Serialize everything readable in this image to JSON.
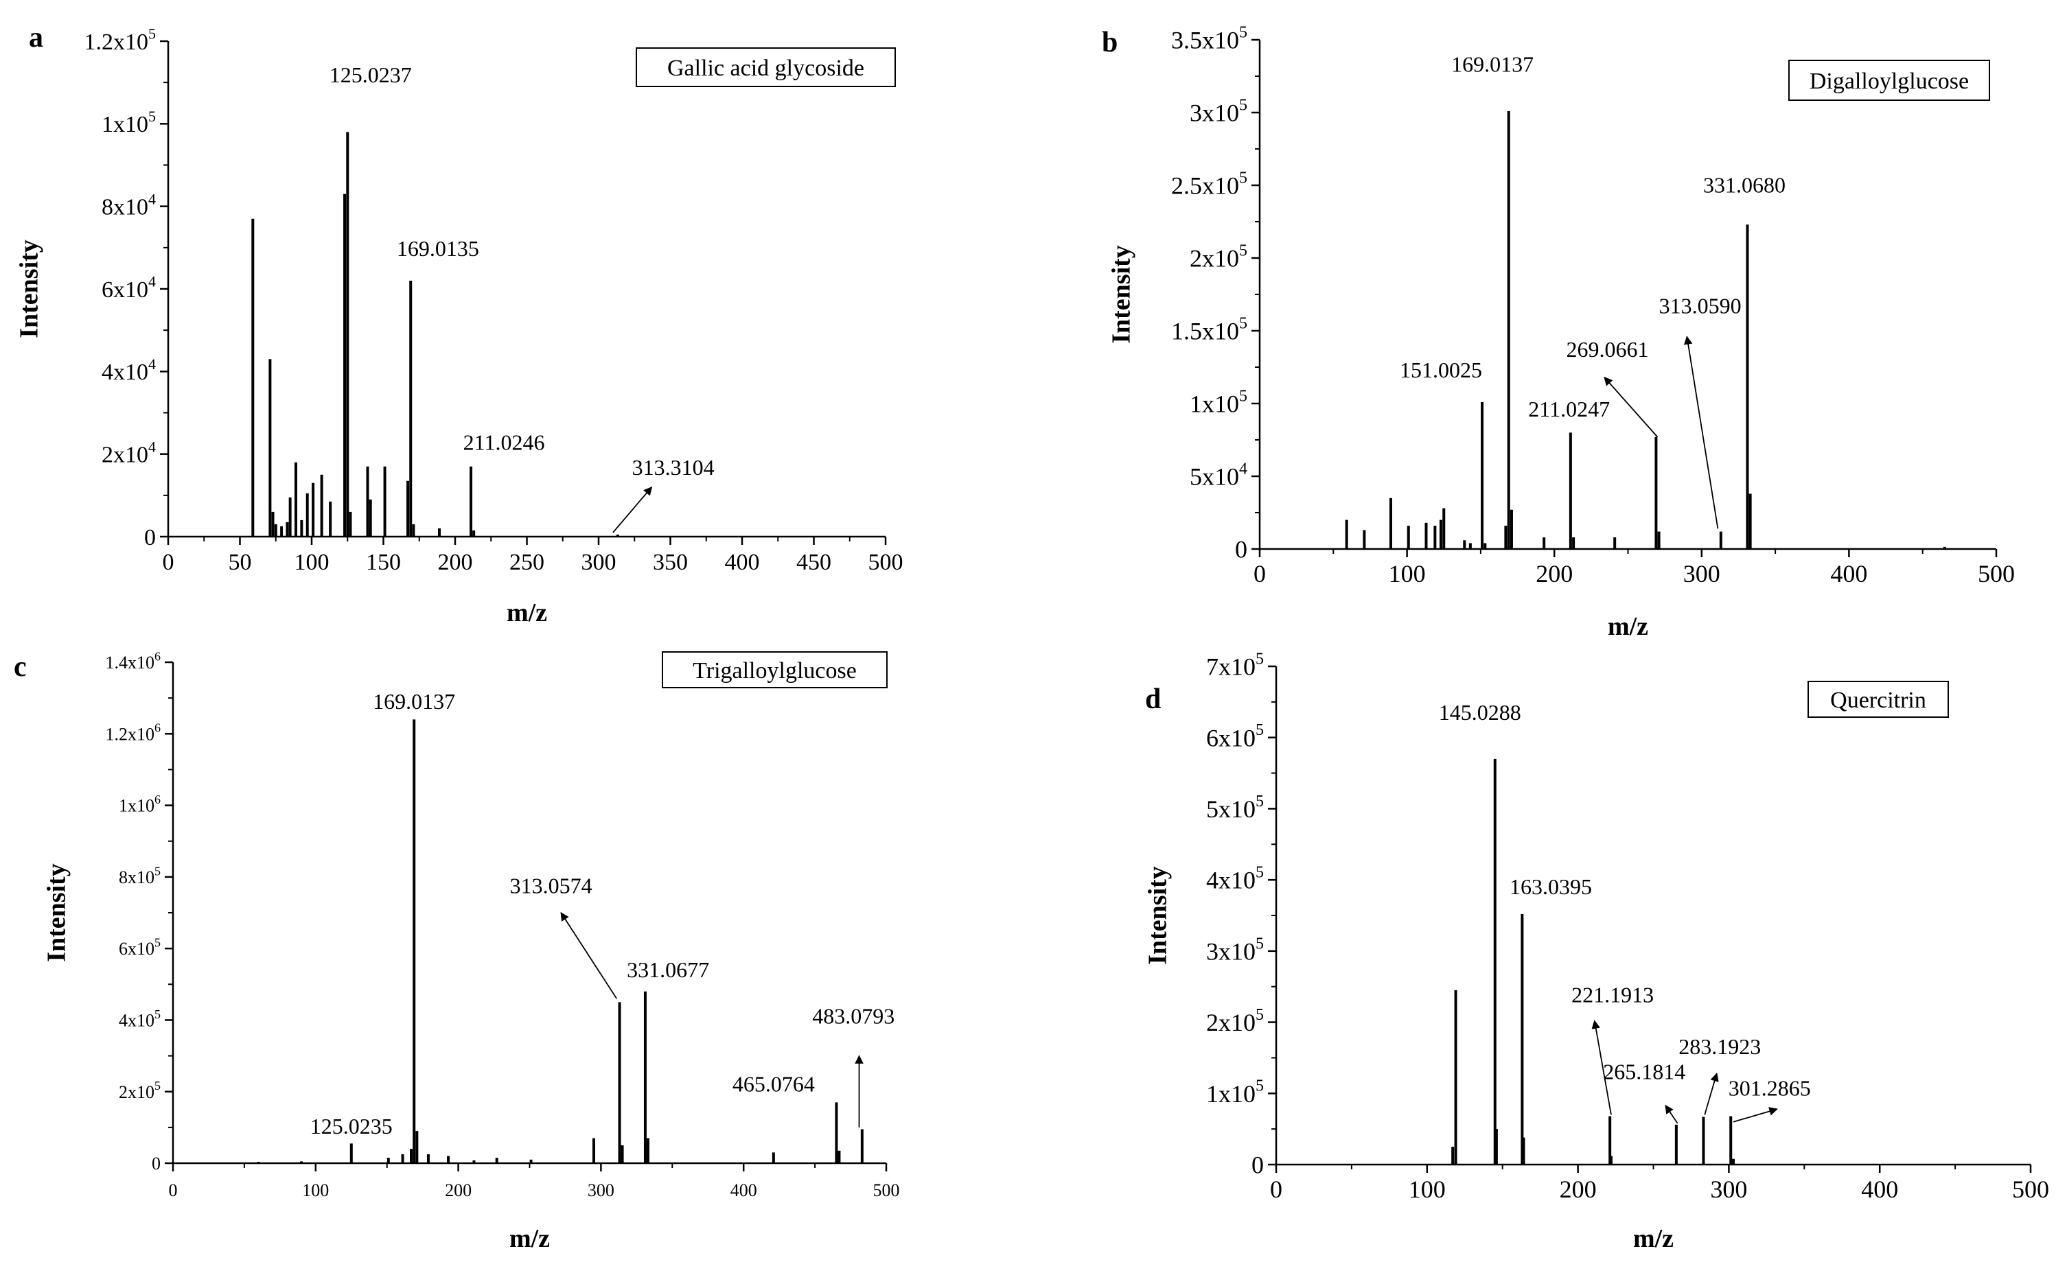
{
  "figure": {
    "background": "#ffffff",
    "ink": "#000000"
  },
  "chart_data": [
    {
      "panel": "a",
      "type": "bar",
      "compound": "Gallic acid glycoside",
      "xlabel": "m/z",
      "ylabel": "Intensity",
      "xlim": [
        0,
        500
      ],
      "ylim": [
        0,
        120000
      ],
      "x_ticks": [
        "0",
        "50",
        "100",
        "150",
        "200",
        "250",
        "300",
        "350",
        "400",
        "450",
        "500"
      ],
      "y_ticks": [
        {
          "value": 0,
          "base": "0",
          "exp": ""
        },
        {
          "value": 20000,
          "base": "2x10",
          "exp": "4"
        },
        {
          "value": 40000,
          "base": "4x10",
          "exp": "4"
        },
        {
          "value": 60000,
          "base": "6x10",
          "exp": "4"
        },
        {
          "value": 80000,
          "base": "8x10",
          "exp": "4"
        },
        {
          "value": 100000,
          "base": "1x10",
          "exp": "5"
        },
        {
          "value": 120000,
          "base": "1.2x10",
          "exp": "5"
        }
      ],
      "peaks": [
        {
          "mz": 59,
          "intensity": 77000
        },
        {
          "mz": 71,
          "intensity": 43000
        },
        {
          "mz": 73,
          "intensity": 6000
        },
        {
          "mz": 75,
          "intensity": 3000
        },
        {
          "mz": 79,
          "intensity": 2500
        },
        {
          "mz": 83,
          "intensity": 3500
        },
        {
          "mz": 85,
          "intensity": 9500
        },
        {
          "mz": 89,
          "intensity": 18000
        },
        {
          "mz": 93,
          "intensity": 4000
        },
        {
          "mz": 97,
          "intensity": 10500
        },
        {
          "mz": 101,
          "intensity": 13000
        },
        {
          "mz": 107,
          "intensity": 15000
        },
        {
          "mz": 113,
          "intensity": 8500
        },
        {
          "mz": 123,
          "intensity": 83000
        },
        {
          "mz": 125.0237,
          "intensity": 98000
        },
        {
          "mz": 127,
          "intensity": 6000
        },
        {
          "mz": 139,
          "intensity": 17000
        },
        {
          "mz": 141,
          "intensity": 9000
        },
        {
          "mz": 151,
          "intensity": 17000
        },
        {
          "mz": 167,
          "intensity": 13500
        },
        {
          "mz": 169.0135,
          "intensity": 62000
        },
        {
          "mz": 171,
          "intensity": 3000
        },
        {
          "mz": 189,
          "intensity": 2000
        },
        {
          "mz": 211.0246,
          "intensity": 17000
        },
        {
          "mz": 213,
          "intensity": 1500
        },
        {
          "mz": 313.3104,
          "intensity": 500
        }
      ],
      "annotations": [
        {
          "text": "125.0237",
          "mz": 125.0237,
          "label_mz": 141,
          "label_y": 110000,
          "arrow": false
        },
        {
          "text": "169.0135",
          "mz": 169.0135,
          "label_mz": 188,
          "label_y": 68000,
          "arrow": false
        },
        {
          "text": "211.0246",
          "mz": 211.0246,
          "label_mz": 234,
          "label_y": 21000,
          "arrow": false
        },
        {
          "text": "313.3104",
          "mz": 313.3104,
          "label_mz": 352,
          "label_y": 15000,
          "arrow": true,
          "arrow_from_mz": 310,
          "arrow_from_y": 1000,
          "arrow_to_mz": 337,
          "arrow_to_y": 12000
        }
      ]
    },
    {
      "panel": "b",
      "type": "bar",
      "compound": "Digalloylglucose",
      "xlabel": "m/z",
      "ylabel": "Intensity",
      "xlim": [
        0,
        500
      ],
      "ylim": [
        0,
        350000
      ],
      "x_ticks": [
        "0",
        "100",
        "200",
        "300",
        "400",
        "500"
      ],
      "y_ticks": [
        {
          "value": 0,
          "base": "0",
          "exp": ""
        },
        {
          "value": 50000,
          "base": "5x10",
          "exp": "4"
        },
        {
          "value": 100000,
          "base": "1x10",
          "exp": "5"
        },
        {
          "value": 150000,
          "base": "1.5x10",
          "exp": "5"
        },
        {
          "value": 200000,
          "base": "2x10",
          "exp": "5"
        },
        {
          "value": 250000,
          "base": "2.5x10",
          "exp": "5"
        },
        {
          "value": 300000,
          "base": "3x10",
          "exp": "5"
        },
        {
          "value": 350000,
          "base": "3.5x10",
          "exp": "5"
        }
      ],
      "peaks": [
        {
          "mz": 59,
          "intensity": 20000
        },
        {
          "mz": 71,
          "intensity": 13000
        },
        {
          "mz": 89,
          "intensity": 35000
        },
        {
          "mz": 101,
          "intensity": 16000
        },
        {
          "mz": 113,
          "intensity": 18000
        },
        {
          "mz": 119,
          "intensity": 16000
        },
        {
          "mz": 123,
          "intensity": 20000
        },
        {
          "mz": 125,
          "intensity": 28000
        },
        {
          "mz": 139,
          "intensity": 6000
        },
        {
          "mz": 143,
          "intensity": 4000
        },
        {
          "mz": 151.0025,
          "intensity": 101000
        },
        {
          "mz": 153,
          "intensity": 4000
        },
        {
          "mz": 167,
          "intensity": 16000
        },
        {
          "mz": 169.0137,
          "intensity": 301000
        },
        {
          "mz": 171,
          "intensity": 27000
        },
        {
          "mz": 193,
          "intensity": 8000
        },
        {
          "mz": 211.0247,
          "intensity": 80000
        },
        {
          "mz": 213,
          "intensity": 8000
        },
        {
          "mz": 241,
          "intensity": 8000
        },
        {
          "mz": 269.0661,
          "intensity": 77000
        },
        {
          "mz": 271,
          "intensity": 12000
        },
        {
          "mz": 313.059,
          "intensity": 12000
        },
        {
          "mz": 331.068,
          "intensity": 223000
        },
        {
          "mz": 333,
          "intensity": 38000
        },
        {
          "mz": 465,
          "intensity": 1500
        }
      ],
      "annotations": [
        {
          "text": "169.0137",
          "mz": 169.0137,
          "label_mz": 158,
          "label_y": 328000,
          "arrow": false
        },
        {
          "text": "331.0680",
          "mz": 331.068,
          "label_mz": 329,
          "label_y": 245000,
          "arrow": false
        },
        {
          "text": "151.0025",
          "mz": 151.0025,
          "label_mz": 123,
          "label_y": 118000,
          "arrow": false
        },
        {
          "text": "211.0247",
          "mz": 211.0247,
          "label_mz": 210,
          "label_y": 91000,
          "arrow": false
        },
        {
          "text": "269.0661",
          "mz": 269.0661,
          "label_mz": 236,
          "label_y": 132000,
          "arrow": true,
          "arrow_from_mz": 270,
          "arrow_from_y": 77000,
          "arrow_to_mz": 234,
          "arrow_to_y": 118000
        },
        {
          "text": "313.0590",
          "mz": 313.059,
          "label_mz": 299,
          "label_y": 162000,
          "arrow": true,
          "arrow_from_mz": 311,
          "arrow_from_y": 14000,
          "arrow_to_mz": 290,
          "arrow_to_y": 146000
        }
      ]
    },
    {
      "panel": "c",
      "type": "bar",
      "compound": "Trigalloylglucose",
      "xlabel": "m/z",
      "ylabel": "Intensity",
      "xlim": [
        0,
        500
      ],
      "ylim": [
        0,
        1400000
      ],
      "x_ticks": [
        "0",
        "100",
        "200",
        "300",
        "400",
        "500"
      ],
      "y_ticks": [
        {
          "value": 0,
          "base": "0",
          "exp": ""
        },
        {
          "value": 200000,
          "base": "2x10",
          "exp": "5"
        },
        {
          "value": 400000,
          "base": "4x10",
          "exp": "5"
        },
        {
          "value": 600000,
          "base": "6x10",
          "exp": "5"
        },
        {
          "value": 800000,
          "base": "8x10",
          "exp": "5"
        },
        {
          "value": 1000000,
          "base": "1x10",
          "exp": "6"
        },
        {
          "value": 1200000,
          "base": "1.2x10",
          "exp": "6"
        },
        {
          "value": 1400000,
          "base": "1.4x10",
          "exp": "6"
        }
      ],
      "peaks": [
        {
          "mz": 60,
          "intensity": 4000
        },
        {
          "mz": 90,
          "intensity": 5000
        },
        {
          "mz": 125.0235,
          "intensity": 55000
        },
        {
          "mz": 151,
          "intensity": 15000
        },
        {
          "mz": 161,
          "intensity": 25000
        },
        {
          "mz": 167,
          "intensity": 40000
        },
        {
          "mz": 169.0137,
          "intensity": 1240000
        },
        {
          "mz": 171,
          "intensity": 90000
        },
        {
          "mz": 179,
          "intensity": 25000
        },
        {
          "mz": 193,
          "intensity": 20000
        },
        {
          "mz": 211,
          "intensity": 8000
        },
        {
          "mz": 227,
          "intensity": 15000
        },
        {
          "mz": 251,
          "intensity": 10000
        },
        {
          "mz": 295,
          "intensity": 70000
        },
        {
          "mz": 313.0574,
          "intensity": 450000
        },
        {
          "mz": 315,
          "intensity": 50000
        },
        {
          "mz": 331.0677,
          "intensity": 480000
        },
        {
          "mz": 333,
          "intensity": 70000
        },
        {
          "mz": 421,
          "intensity": 30000
        },
        {
          "mz": 465.0764,
          "intensity": 170000
        },
        {
          "mz": 467,
          "intensity": 35000
        },
        {
          "mz": 483.0793,
          "intensity": 95000
        }
      ],
      "annotations": [
        {
          "text": "169.0137",
          "mz": 169.0137,
          "label_mz": 169,
          "label_y": 1270000,
          "arrow": false
        },
        {
          "text": "313.0574",
          "mz": 313.0574,
          "label_mz": 265,
          "label_y": 755000,
          "arrow": true,
          "arrow_from_mz": 311,
          "arrow_from_y": 460000,
          "arrow_to_mz": 272,
          "arrow_to_y": 700000
        },
        {
          "text": "331.0677",
          "mz": 331.0677,
          "label_mz": 347,
          "label_y": 520000,
          "arrow": false
        },
        {
          "text": "125.0235",
          "mz": 125.0235,
          "label_mz": 125,
          "label_y": 82000,
          "arrow": false
        },
        {
          "text": "465.0764",
          "mz": 465.0764,
          "label_mz": 421,
          "label_y": 200000,
          "arrow": false
        },
        {
          "text": "483.0793",
          "mz": 483.0793,
          "label_mz": 477,
          "label_y": 390000,
          "arrow": true,
          "arrow_from_mz": 481,
          "arrow_from_y": 100000,
          "arrow_to_mz": 481,
          "arrow_to_y": 300000
        }
      ]
    },
    {
      "panel": "d",
      "type": "bar",
      "compound": "Quercitrin",
      "xlabel": "m/z",
      "ylabel": "Intensity",
      "xlim": [
        0,
        500
      ],
      "ylim": [
        0,
        700000
      ],
      "x_ticks": [
        "0",
        "100",
        "200",
        "300",
        "400",
        "500"
      ],
      "y_ticks": [
        {
          "value": 0,
          "base": "0",
          "exp": ""
        },
        {
          "value": 100000,
          "base": "1x10",
          "exp": "5"
        },
        {
          "value": 200000,
          "base": "2x10",
          "exp": "5"
        },
        {
          "value": 300000,
          "base": "3x10",
          "exp": "5"
        },
        {
          "value": 400000,
          "base": "4x10",
          "exp": "5"
        },
        {
          "value": 500000,
          "base": "5x10",
          "exp": "5"
        },
        {
          "value": 600000,
          "base": "6x10",
          "exp": "5"
        },
        {
          "value": 700000,
          "base": "7x10",
          "exp": "5"
        }
      ],
      "peaks": [
        {
          "mz": 117,
          "intensity": 25000
        },
        {
          "mz": 119,
          "intensity": 245000
        },
        {
          "mz": 145.0288,
          "intensity": 570000
        },
        {
          "mz": 146,
          "intensity": 50000
        },
        {
          "mz": 163.0395,
          "intensity": 352000
        },
        {
          "mz": 164,
          "intensity": 38000
        },
        {
          "mz": 221.1913,
          "intensity": 68000
        },
        {
          "mz": 222,
          "intensity": 12000
        },
        {
          "mz": 265.1814,
          "intensity": 56000
        },
        {
          "mz": 283.1923,
          "intensity": 67000
        },
        {
          "mz": 301.2865,
          "intensity": 68000
        },
        {
          "mz": 303,
          "intensity": 8000
        }
      ],
      "annotations": [
        {
          "text": "145.0288",
          "mz": 145.0288,
          "label_mz": 135,
          "label_y": 625000,
          "arrow": false
        },
        {
          "text": "163.0395",
          "mz": 163.0395,
          "label_mz": 182,
          "label_y": 380000,
          "arrow": false
        },
        {
          "text": "221.1913",
          "mz": 221.1913,
          "label_mz": 223,
          "label_y": 228000,
          "arrow": true,
          "arrow_from_mz": 222,
          "arrow_from_y": 70000,
          "arrow_to_mz": 211,
          "arrow_to_y": 202000
        },
        {
          "text": "265.1814",
          "mz": 265.1814,
          "label_mz": 244,
          "label_y": 120000,
          "arrow": true,
          "arrow_from_mz": 266,
          "arrow_from_y": 58000,
          "arrow_to_mz": 258,
          "arrow_to_y": 83000
        },
        {
          "text": "283.1923",
          "mz": 283.1923,
          "label_mz": 294,
          "label_y": 155000,
          "arrow": true,
          "arrow_from_mz": 284,
          "arrow_from_y": 70000,
          "arrow_to_mz": 292,
          "arrow_to_y": 128000
        },
        {
          "text": "301.2865",
          "mz": 301.2865,
          "label_mz": 327,
          "label_y": 97000,
          "arrow": true,
          "arrow_from_mz": 303,
          "arrow_from_y": 60000,
          "arrow_to_mz": 332,
          "arrow_to_y": 78000
        }
      ]
    }
  ]
}
